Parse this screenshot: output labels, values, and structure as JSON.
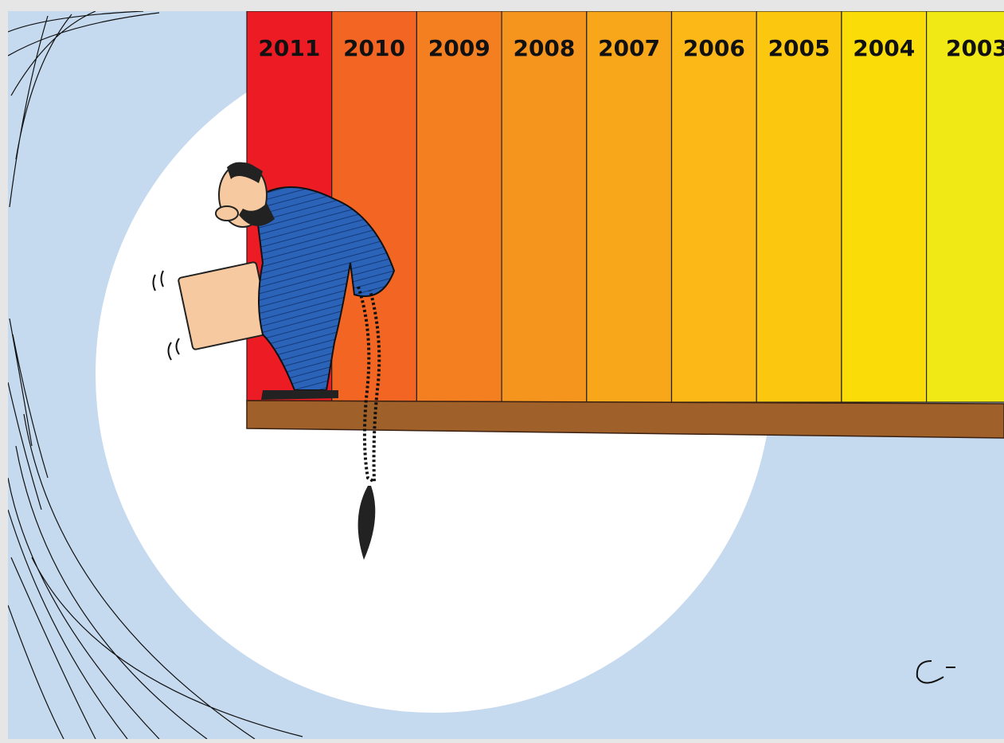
{
  "panels": [
    {
      "label": "2011",
      "color": "#ed1c24"
    },
    {
      "label": "2010",
      "color": "#f26522"
    },
    {
      "label": "2009",
      "color": "#f47f20"
    },
    {
      "label": "2008",
      "color": "#f6951d"
    },
    {
      "label": "2007",
      "color": "#f8a71a"
    },
    {
      "label": "2006",
      "color": "#fbb816"
    },
    {
      "label": "2005",
      "color": "#fcc80f"
    },
    {
      "label": "2004",
      "color": "#f9dc08"
    },
    {
      "label": "2003",
      "color": "#f1e916"
    }
  ]
}
